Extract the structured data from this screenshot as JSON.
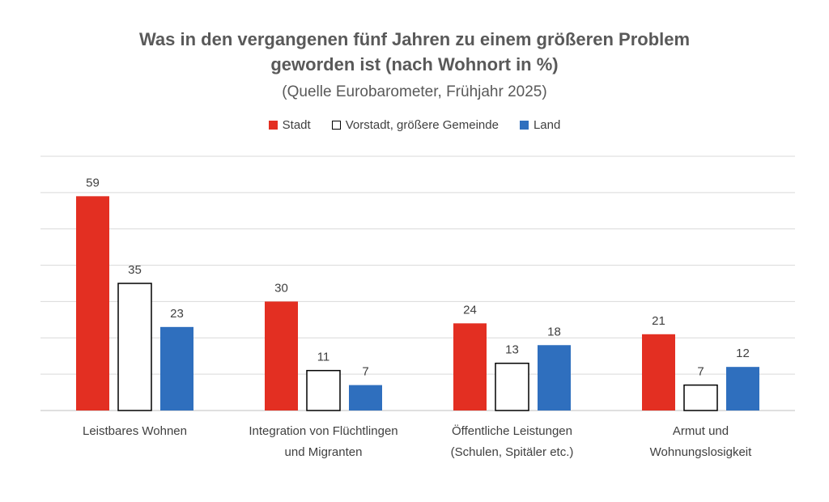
{
  "chart_data": {
    "type": "bar",
    "title_line1": "Was in den vergangenen fünf Jahren zu einem größeren Problem",
    "title_line2": "geworden ist (nach Wohnort in %)",
    "subtitle": "(Quelle Eurobarometer, Frühjahr 2025)",
    "categories": [
      [
        "Leistbares Wohnen"
      ],
      [
        "Integration von Flüchtlingen",
        "und Migranten"
      ],
      [
        "Öffentliche Leistungen",
        "(Schulen, Spitäler etc.)"
      ],
      [
        "Armut und",
        "Wohnungslosigkeit"
      ]
    ],
    "series": [
      {
        "name": "Stadt",
        "values": [
          59,
          30,
          24,
          21
        ],
        "color": "#e32f22"
      },
      {
        "name": "Vorstadt, größere Gemeinde",
        "values": [
          35,
          11,
          13,
          7
        ],
        "color": "#ffffff",
        "stroke": "#000000"
      },
      {
        "name": "Land",
        "values": [
          23,
          7,
          18,
          12
        ],
        "color": "#2f6fbe"
      }
    ],
    "ylim": [
      0,
      70
    ],
    "grid": true,
    "legend_position": "top",
    "data_labels": true
  }
}
